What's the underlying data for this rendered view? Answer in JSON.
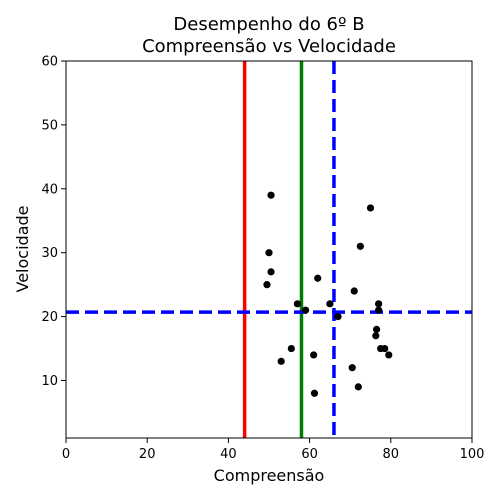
{
  "chart_data": {
    "type": "scatter",
    "title_line1": "Desempenho do 6º B",
    "title_line2": "Compreensão vs Velocidade",
    "xlabel": "Compreensão",
    "ylabel": "Velocidade",
    "xlim": [
      0,
      100
    ],
    "ylim": [
      1,
      60
    ],
    "xticks": [
      0,
      20,
      40,
      60,
      80,
      100
    ],
    "yticks": [
      10,
      20,
      30,
      40,
      50,
      60
    ],
    "grid": false,
    "marker_color": "#000000",
    "points": [
      {
        "x": 49.5,
        "y": 25
      },
      {
        "x": 50.0,
        "y": 30
      },
      {
        "x": 50.5,
        "y": 39
      },
      {
        "x": 50.5,
        "y": 27
      },
      {
        "x": 53.0,
        "y": 13
      },
      {
        "x": 55.5,
        "y": 15
      },
      {
        "x": 57.0,
        "y": 22
      },
      {
        "x": 59.0,
        "y": 21
      },
      {
        "x": 61.0,
        "y": 14
      },
      {
        "x": 61.2,
        "y": 8
      },
      {
        "x": 62.0,
        "y": 26
      },
      {
        "x": 65.0,
        "y": 22
      },
      {
        "x": 67.0,
        "y": 20
      },
      {
        "x": 70.5,
        "y": 12
      },
      {
        "x": 71.0,
        "y": 24
      },
      {
        "x": 72.0,
        "y": 9
      },
      {
        "x": 72.5,
        "y": 31
      },
      {
        "x": 75.0,
        "y": 37
      },
      {
        "x": 76.3,
        "y": 17
      },
      {
        "x": 76.5,
        "y": 18
      },
      {
        "x": 77.0,
        "y": 22
      },
      {
        "x": 77.0,
        "y": 21
      },
      {
        "x": 77.5,
        "y": 15
      },
      {
        "x": 78.5,
        "y": 15
      },
      {
        "x": 79.5,
        "y": 14
      }
    ],
    "reference_lines": [
      {
        "orientation": "vertical",
        "value": 44,
        "color": "#ff0000",
        "style": "solid"
      },
      {
        "orientation": "vertical",
        "value": 58,
        "color": "#008000",
        "style": "solid"
      },
      {
        "orientation": "vertical",
        "value": 66,
        "color": "#0000ff",
        "style": "dashed"
      },
      {
        "orientation": "horizontal",
        "value": 20.7,
        "color": "#0000ff",
        "style": "dashed"
      }
    ]
  }
}
